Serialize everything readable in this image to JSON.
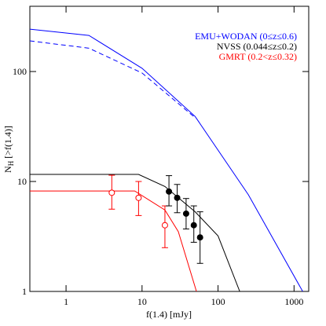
{
  "chart_data": {
    "type": "line",
    "xscale": "log",
    "yscale": "log",
    "xlabel": "f(1.4) [mJy]",
    "ylabel": {
      "main": "N",
      "sub": "H",
      "rest": " [>f(1.4)]"
    },
    "xlim": [
      0.334,
      1560
    ],
    "ylim": [
      1,
      392
    ],
    "xticks": [
      1,
      10,
      100,
      1000
    ],
    "yticks": [
      1,
      10,
      100
    ],
    "legend": "upper right",
    "series": [
      {
        "name": "EMU+WODAN (0≤z≤0.6)",
        "color": "#0000ff",
        "style": "solid",
        "x": [
          0.334,
          2,
          10,
          50,
          250,
          1300
        ],
        "values": [
          243,
          213,
          107,
          39,
          7.6,
          1
        ]
      },
      {
        "color": "#0000ff",
        "style": "dashed",
        "x": [
          0.334,
          2,
          10,
          50
        ],
        "values": [
          190,
          163,
          97,
          38
        ]
      },
      {
        "name": "NVSS (0.044≤z≤0.2)",
        "color": "#000000",
        "style": "solid",
        "x": [
          0.334,
          9,
          20,
          50,
          100,
          193
        ],
        "values": [
          11.6,
          11.6,
          9,
          5.3,
          3.2,
          1
        ]
      },
      {
        "name": "GMRT (0.2<z≤0.32)",
        "color": "#ff0000",
        "style": "solid",
        "x": [
          0.334,
          8,
          20,
          30,
          52
        ],
        "values": [
          8.2,
          8.2,
          5.5,
          3.5,
          1
        ]
      },
      {
        "type": "scatter",
        "color": "#ff0000",
        "marker": "open",
        "x": [
          4,
          9,
          20
        ],
        "values": [
          7.9,
          7.1,
          4.0
        ],
        "ylow": [
          5.6,
          4.9,
          2.5
        ],
        "yhigh": [
          11.4,
          10,
          6
        ]
      },
      {
        "type": "scatter",
        "color": "#000000",
        "marker": "filled",
        "x": [
          22.6,
          29,
          38,
          48,
          58
        ],
        "values": [
          8.1,
          7.1,
          5.1,
          4.0,
          3.1
        ],
        "ylow": [
          6,
          5.2,
          3.7,
          2.8,
          1.8
        ],
        "yhigh": [
          11.3,
          9.4,
          7,
          6,
          5.3
        ]
      }
    ]
  }
}
